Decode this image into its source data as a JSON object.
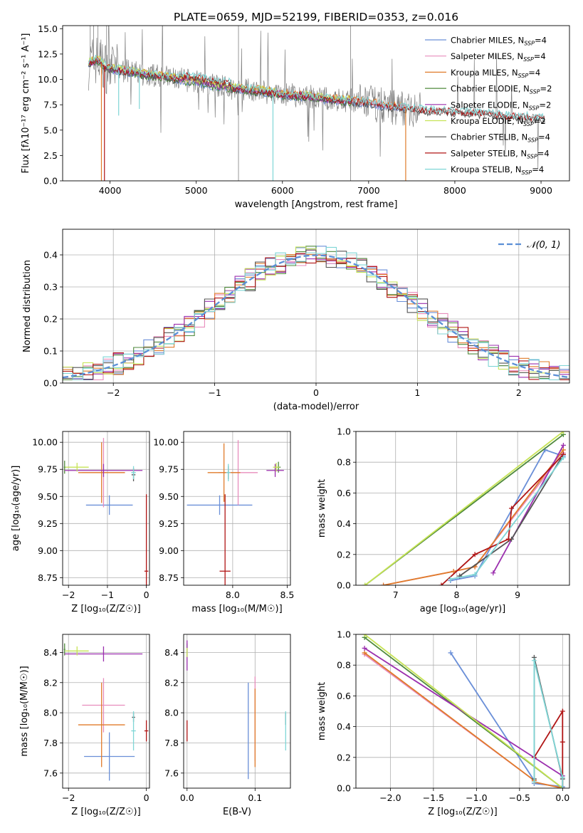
{
  "figure_title": "PLATE=0659, MJD=52199, FIBERID=0353, z=0.016",
  "colors": {
    "chabrier_miles": "#6a8fd8",
    "salpeter_miles": "#e88dbd",
    "kroupa_miles": "#e07b2a",
    "chabrier_elodie": "#4f8a3c",
    "salpeter_elodie": "#9b2fae",
    "kroupa_elodie": "#c6e356",
    "chabrier_stelib": "#555555",
    "salpeter_stelib": "#b01515",
    "kroupa_stelib": "#7fd6d6",
    "data": "#808080",
    "normal_curve": "#5b8fd6"
  },
  "chart_data": [
    {
      "id": "spectrum",
      "type": "line",
      "title": "PLATE=0659, MJD=52199, FIBERID=0353, z=0.016",
      "xlabel": "wavelength [Angstrom, rest frame]",
      "ylabel": "Flux [fλ10⁻¹⁷ erg cm⁻² s⁻¹ A⁻¹]",
      "xlim": [
        3450,
        9330
      ],
      "ylim": [
        0,
        15.3
      ],
      "xticks": [
        4000,
        5000,
        6000,
        7000,
        8000,
        9000
      ],
      "yticks": [
        0.0,
        2.5,
        5.0,
        7.5,
        10.0,
        12.5,
        15.0
      ],
      "legend_position": "top-right",
      "continuum": {
        "x": [
          3750,
          3850,
          3950,
          4050,
          4200,
          4400,
          4600,
          4800,
          5000,
          5200,
          5400,
          5600,
          5800,
          6000,
          6200,
          6400,
          6600,
          6800,
          7000,
          7200,
          7400,
          7600,
          7800,
          8000,
          8200,
          8400,
          8600,
          8800,
          9050
        ],
        "y": [
          11.5,
          12.0,
          11.2,
          11.0,
          10.8,
          10.5,
          10.3,
          10.0,
          9.8,
          9.4,
          9.2,
          9.0,
          8.8,
          8.5,
          8.4,
          8.2,
          8.0,
          7.9,
          7.7,
          7.4,
          7.2,
          7.0,
          6.9,
          6.8,
          6.7,
          6.6,
          6.4,
          6.3,
          6.1
        ]
      },
      "series": [
        {
          "name": "Chabrier MILES, N_SSP=4",
          "color_key": "chabrier_miles",
          "endx": 7430
        },
        {
          "name": "Salpeter MILES, N_SSP=4",
          "color_key": "salpeter_miles",
          "endx": 7430
        },
        {
          "name": "Kroupa MILES, N_SSP=4",
          "color_key": "kroupa_miles",
          "endx": 7430
        },
        {
          "name": "Chabrier ELODIE, N_SSP=2",
          "color_key": "chabrier_elodie",
          "endx": 6800
        },
        {
          "name": "Salpeter ELODIE, N_SSP=2",
          "color_key": "salpeter_elodie",
          "endx": 6800
        },
        {
          "name": "Kroupa ELODIE, N_SSP=2",
          "color_key": "kroupa_elodie",
          "endx": 6800
        },
        {
          "name": "Chabrier STELIB, N_SSP=4",
          "color_key": "chabrier_stelib",
          "endx": 9050
        },
        {
          "name": "Salpeter STELIB, N_SSP=4",
          "color_key": "salpeter_stelib",
          "endx": 9050
        },
        {
          "name": "Kroupa STELIB, N_SSP=4",
          "color_key": "kroupa_stelib",
          "endx": 9050
        }
      ],
      "dips": [
        {
          "x": 3900,
          "depth": 15.3,
          "color_key": "kroupa_miles"
        },
        {
          "x": 3935,
          "depth": 15.3,
          "color_key": "salpeter_stelib"
        },
        {
          "x": 4100,
          "depth": 4.5,
          "color_key": "kroupa_stelib"
        },
        {
          "x": 4340,
          "depth": 3.5,
          "color_key": "kroupa_stelib"
        },
        {
          "x": 5890,
          "depth": 9.0,
          "color_key": "kroupa_stelib"
        },
        {
          "x": 7430,
          "depth": 15.3,
          "color_key": "kroupa_miles"
        }
      ]
    },
    {
      "id": "residuals",
      "type": "histogram",
      "xlabel": "(data-model)/error",
      "ylabel": "Normed distribution",
      "xlim": [
        -2.5,
        2.5
      ],
      "ylim": [
        0,
        0.48
      ],
      "xticks": [
        -2,
        -1,
        0,
        1,
        2
      ],
      "yticks": [
        0.0,
        0.1,
        0.2,
        0.3,
        0.4
      ],
      "grid": true,
      "bin_width": 0.1,
      "legend": [
        {
          "label": "𝒩(0, 1)",
          "style": "dashed",
          "color_key": "normal_curve"
        }
      ],
      "legend_position": "top-right",
      "curve": {
        "mean": 0,
        "sigma": 1
      }
    },
    {
      "id": "z-age",
      "type": "errorbar",
      "xlabel": "Z [log₁₀(Z/Z☉)]",
      "ylabel": "age  [log₁₀(age/yr)]",
      "xlim": [
        -2.15,
        0.08
      ],
      "ylim": [
        8.68,
        10.1
      ],
      "xticks": [
        -2,
        -1,
        0
      ],
      "yticks": [
        8.75,
        9.0,
        9.25,
        9.5,
        9.75,
        10.0
      ],
      "grid": true,
      "points": [
        {
          "color_key": "chabrier_miles",
          "x": -0.95,
          "y": 9.42,
          "xerr": 0.6,
          "yerr": 0.09
        },
        {
          "color_key": "salpeter_miles",
          "x": -1.1,
          "y": 9.72,
          "xerr": 0.55,
          "yerr": 0.32
        },
        {
          "color_key": "kroupa_miles",
          "x": -1.15,
          "y": 9.72,
          "xerr": 0.6,
          "yerr": 0.28
        },
        {
          "color_key": "chabrier_elodie",
          "x": -2.1,
          "y": 9.77,
          "xerr": 0.02,
          "yerr": 0.06
        },
        {
          "color_key": "salpeter_elodie",
          "x": -1.1,
          "y": 9.74,
          "xerr": 1.0,
          "yerr": 0.06
        },
        {
          "color_key": "kroupa_elodie",
          "x": -1.78,
          "y": 9.77,
          "xerr": 0.3,
          "yerr": 0.04
        },
        {
          "color_key": "chabrier_stelib",
          "x": -0.33,
          "y": 9.7,
          "xerr": 0.05,
          "yerr": 0.06
        },
        {
          "color_key": "salpeter_stelib",
          "x": 0.0,
          "y": 8.81,
          "xerr": 0.05,
          "yerr": 0.71
        },
        {
          "color_key": "kroupa_stelib",
          "x": -0.33,
          "y": 9.72,
          "xerr": 0.06,
          "yerr": 0.06
        }
      ]
    },
    {
      "id": "mass-age",
      "type": "errorbar",
      "xlabel": "mass [log₁₀(M/M☉)]",
      "ylabel": "",
      "xlim": [
        7.55,
        8.53
      ],
      "ylim": [
        8.68,
        10.1
      ],
      "xticks": [
        8.0,
        8.5
      ],
      "yticks": [
        8.75,
        9.0,
        9.25,
        9.5,
        9.75,
        10.0
      ],
      "grid": true,
      "points": [
        {
          "color_key": "chabrier_miles",
          "x": 7.88,
          "y": 9.42,
          "xerr": 0.3,
          "yerr": 0.09
        },
        {
          "color_key": "salpeter_miles",
          "x": 8.05,
          "y": 9.72,
          "xerr": 0.18,
          "yerr": 0.3
        },
        {
          "color_key": "kroupa_miles",
          "x": 7.92,
          "y": 9.72,
          "xerr": 0.15,
          "yerr": 0.27
        },
        {
          "color_key": "chabrier_elodie",
          "x": 8.42,
          "y": 9.77,
          "xerr": 0.02,
          "yerr": 0.05
        },
        {
          "color_key": "salpeter_elodie",
          "x": 8.39,
          "y": 9.74,
          "xerr": 0.08,
          "yerr": 0.06
        },
        {
          "color_key": "kroupa_elodie",
          "x": 8.4,
          "y": 9.77,
          "xerr": 0.03,
          "yerr": 0.04
        },
        {
          "color_key": "chabrier_stelib",
          "x": 7.96,
          "y": 9.72,
          "xerr": 0.01,
          "yerr": 0.06
        },
        {
          "color_key": "salpeter_stelib",
          "x": 7.93,
          "y": 8.81,
          "xerr": 0.05,
          "yerr": 0.71
        },
        {
          "color_key": "kroupa_stelib",
          "x": 7.96,
          "y": 9.72,
          "xerr": 0.02,
          "yerr": 0.08
        }
      ]
    },
    {
      "id": "age-mass-weight",
      "type": "line",
      "xlabel": "age  [log₁₀(age/yr)]",
      "ylabel": "mass weight",
      "xlim": [
        6.35,
        9.85
      ],
      "ylim": [
        0,
        1.0
      ],
      "xticks": [
        7,
        8,
        9
      ],
      "yticks": [
        0.0,
        0.2,
        0.4,
        0.6,
        0.8,
        1.0
      ],
      "grid": true,
      "series": [
        {
          "color_key": "chabrier_miles",
          "x": [
            7.9,
            8.3,
            9.45,
            9.75
          ],
          "y": [
            0.03,
            0.06,
            0.88,
            0.84
          ]
        },
        {
          "color_key": "salpeter_miles",
          "x": [
            6.8,
            7.95,
            8.3,
            9.75
          ],
          "y": [
            0.0,
            0.09,
            0.12,
            0.86
          ]
        },
        {
          "color_key": "kroupa_miles",
          "x": [
            6.8,
            7.95,
            8.3,
            9.75
          ],
          "y": [
            0.0,
            0.09,
            0.12,
            0.88
          ]
        },
        {
          "color_key": "chabrier_elodie",
          "x": [
            6.5,
            9.75
          ],
          "y": [
            0.0,
            0.98
          ]
        },
        {
          "color_key": "salpeter_elodie",
          "x": [
            8.6,
            9.75
          ],
          "y": [
            0.08,
            0.91
          ]
        },
        {
          "color_key": "kroupa_elodie",
          "x": [
            6.5,
            9.75
          ],
          "y": [
            0.0,
            1.0
          ]
        },
        {
          "color_key": "chabrier_stelib",
          "x": [
            8.05,
            8.9,
            9.75
          ],
          "y": [
            0.06,
            0.3,
            0.85
          ]
        },
        {
          "color_key": "salpeter_stelib",
          "x": [
            7.75,
            8.3,
            8.85,
            8.9,
            9.75
          ],
          "y": [
            0.0,
            0.2,
            0.3,
            0.5,
            0.85
          ]
        },
        {
          "color_key": "kroupa_stelib",
          "x": [
            7.9,
            8.3,
            9.75
          ],
          "y": [
            0.04,
            0.07,
            0.83
          ]
        }
      ]
    },
    {
      "id": "z-mass",
      "type": "errorbar",
      "xlabel": "Z [log₁₀(Z/Z☉)]",
      "ylabel": "mass [log₁₀(M/M☉)]",
      "xlim": [
        -2.15,
        0.08
      ],
      "ylim": [
        7.5,
        8.52
      ],
      "xticks": [
        -2,
        0
      ],
      "yticks": [
        7.6,
        7.8,
        8.0,
        8.2,
        8.4
      ],
      "grid": true,
      "points": [
        {
          "color_key": "chabrier_miles",
          "x": -0.95,
          "y": 7.71,
          "xerr": 0.65,
          "yerr": 0.16
        },
        {
          "color_key": "salpeter_miles",
          "x": -1.1,
          "y": 8.05,
          "xerr": 0.55,
          "yerr": 0.18
        },
        {
          "color_key": "kroupa_miles",
          "x": -1.15,
          "y": 7.92,
          "xerr": 0.6,
          "yerr": 0.28
        },
        {
          "color_key": "chabrier_elodie",
          "x": -2.1,
          "y": 8.42,
          "xerr": 0.02,
          "yerr": 0.04
        },
        {
          "color_key": "salpeter_elodie",
          "x": -1.1,
          "y": 8.39,
          "xerr": 1.0,
          "yerr": 0.05
        },
        {
          "color_key": "kroupa_elodie",
          "x": -1.78,
          "y": 8.41,
          "xerr": 0.3,
          "yerr": 0.03
        },
        {
          "color_key": "chabrier_stelib",
          "x": -0.33,
          "y": 7.97,
          "xerr": 0.04,
          "yerr": 0.03
        },
        {
          "color_key": "salpeter_stelib",
          "x": 0.0,
          "y": 7.88,
          "xerr": 0.05,
          "yerr": 0.07
        },
        {
          "color_key": "kroupa_stelib",
          "x": -0.33,
          "y": 7.88,
          "xerr": 0.06,
          "yerr": 0.13
        }
      ]
    },
    {
      "id": "ebv-mass",
      "type": "errorbar",
      "xlabel": "E(B-V)",
      "ylabel": "",
      "xlim": [
        -0.005,
        0.152
      ],
      "ylim": [
        7.5,
        8.52
      ],
      "xticks": [
        0.0,
        0.1
      ],
      "yticks": [
        7.6,
        7.8,
        8.0,
        8.2,
        8.4
      ],
      "grid": true,
      "points": [
        {
          "color_key": "chabrier_miles",
          "x": 0.09,
          "y": 7.88,
          "xerr": 0.0,
          "yerr": 0.32
        },
        {
          "color_key": "salpeter_miles",
          "x": 0.1,
          "y": 7.96,
          "xerr": 0.0,
          "yerr": 0.28
        },
        {
          "color_key": "kroupa_miles",
          "x": 0.1,
          "y": 7.9,
          "xerr": 0.0,
          "yerr": 0.26
        },
        {
          "color_key": "chabrier_elodie",
          "x": 0.0,
          "y": 8.42,
          "xerr": 0.0,
          "yerr": 0.04
        },
        {
          "color_key": "salpeter_elodie",
          "x": 0.0,
          "y": 8.38,
          "xerr": 0.0,
          "yerr": 0.1
        },
        {
          "color_key": "kroupa_elodie",
          "x": 0.0,
          "y": 8.4,
          "xerr": 0.0,
          "yerr": 0.03
        },
        {
          "color_key": "chabrier_stelib",
          "x": 0.145,
          "y": 7.96,
          "xerr": 0.0,
          "yerr": 0.04
        },
        {
          "color_key": "salpeter_stelib",
          "x": 0.0,
          "y": 7.88,
          "xerr": 0.0,
          "yerr": 0.07
        },
        {
          "color_key": "kroupa_stelib",
          "x": 0.145,
          "y": 7.88,
          "xerr": 0.0,
          "yerr": 0.13
        }
      ]
    },
    {
      "id": "z-mass-weight",
      "type": "line",
      "xlabel": "Z [log₁₀(Z/Z☉)]",
      "ylabel": "mass weight",
      "xlim": [
        -2.4,
        0.08
      ],
      "ylim": [
        0,
        1.0
      ],
      "xticks": [
        -2.0,
        -1.5,
        -1.0,
        -0.5,
        0.0
      ],
      "yticks": [
        0.0,
        0.2,
        0.4,
        0.6,
        0.8,
        1.0
      ],
      "grid": true,
      "series": [
        {
          "color_key": "chabrier_miles",
          "x": [
            -1.3,
            -0.33,
            -0.33,
            0.0
          ],
          "y": [
            0.88,
            0.05,
            0.03,
            0.01
          ]
        },
        {
          "color_key": "salpeter_miles",
          "x": [
            -2.3,
            -0.33,
            -0.33,
            0.0
          ],
          "y": [
            0.87,
            0.05,
            0.04,
            0.0
          ]
        },
        {
          "color_key": "kroupa_miles",
          "x": [
            -2.3,
            -0.33,
            -0.33,
            0.0
          ],
          "y": [
            0.88,
            0.05,
            0.04,
            0.0
          ]
        },
        {
          "color_key": "chabrier_elodie",
          "x": [
            -2.3,
            0.0
          ],
          "y": [
            0.98,
            0.0
          ]
        },
        {
          "color_key": "salpeter_elodie",
          "x": [
            -2.3,
            0.0
          ],
          "y": [
            0.91,
            0.08
          ]
        },
        {
          "color_key": "kroupa_elodie",
          "x": [
            -2.3,
            0.0
          ],
          "y": [
            1.0,
            0.0
          ]
        },
        {
          "color_key": "chabrier_stelib",
          "x": [
            -0.33,
            -0.33,
            0.0,
            0.0
          ],
          "y": [
            0.06,
            0.85,
            0.06,
            0.0
          ]
        },
        {
          "color_key": "salpeter_stelib",
          "x": [
            -0.33,
            0.0,
            0.0,
            0.0
          ],
          "y": [
            0.2,
            0.5,
            0.3,
            0.0
          ]
        },
        {
          "color_key": "kroupa_stelib",
          "x": [
            -0.33,
            -0.33,
            0.0,
            0.0
          ],
          "y": [
            0.04,
            0.83,
            0.07,
            0.0
          ]
        }
      ]
    }
  ]
}
